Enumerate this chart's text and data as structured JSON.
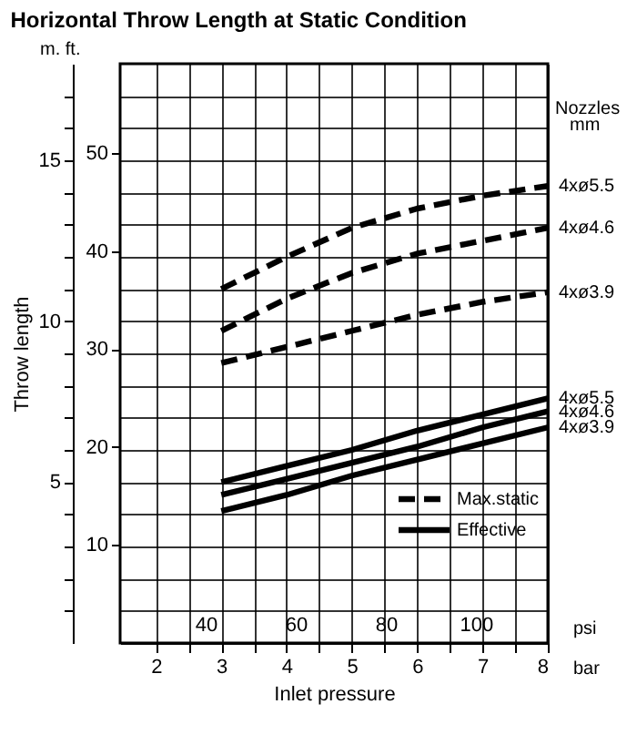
{
  "chart_data": {
    "type": "line",
    "title": "Horizontal Throw Length at Static Condition",
    "xlabel": "Inlet pressure",
    "ylabel": "Throw length",
    "x": [
      3,
      4,
      5,
      6,
      7,
      8
    ],
    "series": [
      {
        "name": "4xø5.5",
        "color": "#000000",
        "line_style": "dashed",
        "values": [
          11.0,
          12.0,
          12.9,
          13.5,
          13.9,
          14.2
        ]
      },
      {
        "name": "4xø4.6",
        "color": "#000000",
        "line_style": "dashed",
        "values": [
          9.7,
          10.7,
          11.5,
          12.1,
          12.5,
          12.9
        ]
      },
      {
        "name": "4xø3.9",
        "color": "#000000",
        "line_style": "dashed",
        "values": [
          8.7,
          9.2,
          9.7,
          10.2,
          10.6,
          10.9
        ]
      },
      {
        "name": "4xø5.5",
        "color": "#000000",
        "line_style": "solid",
        "values": [
          5.0,
          5.5,
          6.0,
          6.6,
          7.1,
          7.6
        ]
      },
      {
        "name": "4xø4.6",
        "color": "#000000",
        "line_style": "solid",
        "values": [
          4.6,
          5.1,
          5.6,
          6.1,
          6.7,
          7.2
        ]
      },
      {
        "name": "4xø3.9",
        "color": "#000000",
        "line_style": "solid",
        "values": [
          4.1,
          4.6,
          5.2,
          5.7,
          6.2,
          6.7
        ]
      }
    ],
    "xlim": [
      1.45,
      8
    ],
    "xticks": [
      2,
      {
        "value": 2.5,
        "label": null
      },
      3,
      {
        "value": 3.5,
        "label": null
      },
      4,
      {
        "value": 4.5,
        "label": null
      },
      5,
      {
        "value": 5.5,
        "label": null
      },
      6,
      {
        "value": 6.5,
        "label": null
      },
      7,
      {
        "value": 7.5,
        "label": null
      },
      8
    ],
    "x2lim": [
      21,
      116
    ],
    "x2ticks": [
      40,
      60,
      80,
      100
    ],
    "ylim": [
      0,
      18
    ],
    "yticks": [
      {
        "value": 1,
        "label": null
      },
      {
        "value": 2,
        "label": null
      },
      {
        "value": 3,
        "label": null
      },
      {
        "value": 4,
        "label": null
      },
      5,
      {
        "value": 6,
        "label": null
      },
      {
        "value": 7,
        "label": null
      },
      {
        "value": 8,
        "label": null
      },
      {
        "value": 9,
        "label": null
      },
      10,
      {
        "value": 11,
        "label": null
      },
      {
        "value": 12,
        "label": null
      },
      {
        "value": 13,
        "label": null
      },
      {
        "value": 14,
        "label": null
      },
      15,
      {
        "value": 16,
        "label": null
      },
      {
        "value": 17,
        "label": null
      }
    ],
    "y2lim": [
      0,
      59.1
    ],
    "y2ticks": [
      10,
      20,
      30,
      40,
      50
    ],
    "grid": true,
    "annotations": [
      "m.  ft.",
      "Nozzles",
      "mm",
      "psi",
      "bar",
      "Max.static",
      "Effective"
    ]
  }
}
